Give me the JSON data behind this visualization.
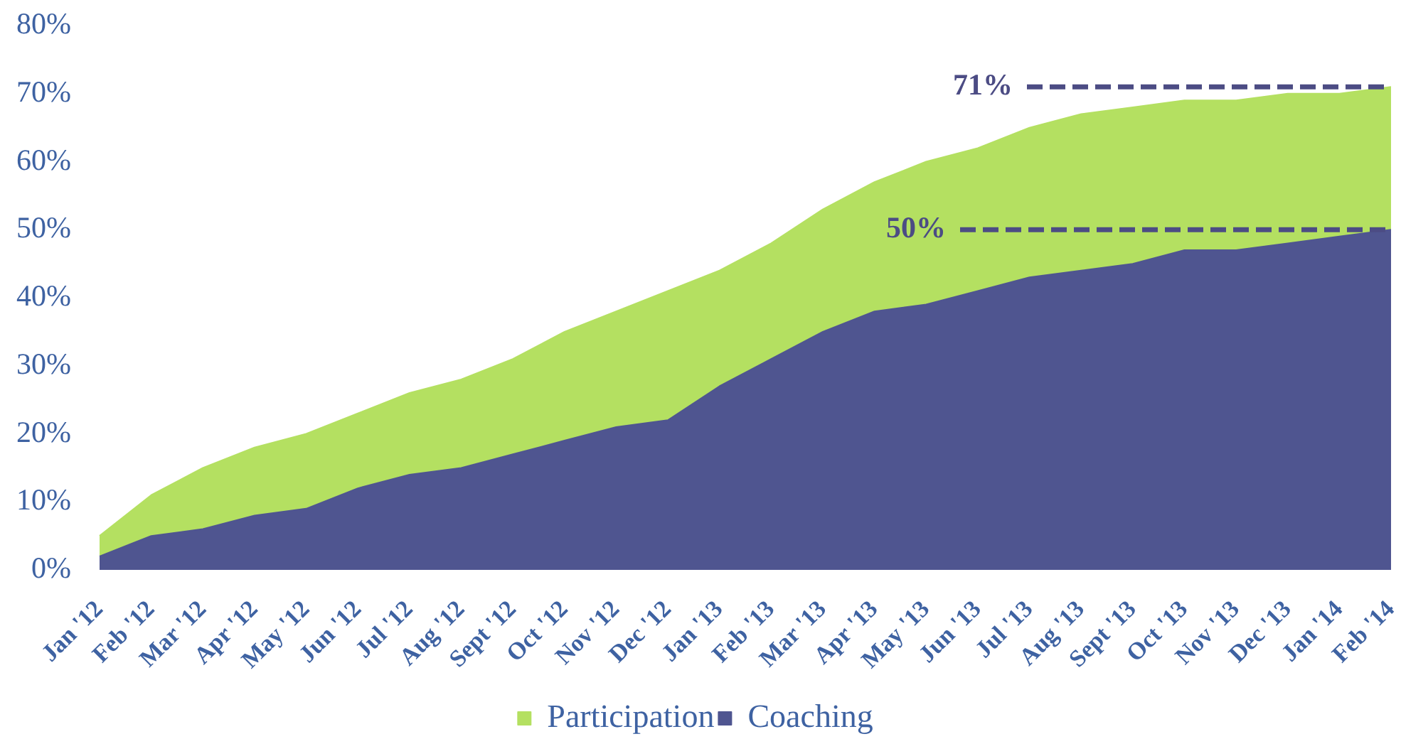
{
  "chart_data": {
    "type": "area",
    "categories": [
      "Jan '12",
      "Feb '12",
      "Mar '12",
      "Apr '12",
      "May '12",
      "Jun '12",
      "Jul '12",
      "Aug '12",
      "Sept '12",
      "Oct '12",
      "Nov '12",
      "Dec '12",
      "Jan '13",
      "Feb '13",
      "Mar '13",
      "Apr '13",
      "May '13",
      "Jun '13",
      "Jul '13",
      "Aug '13",
      "Sept '13",
      "Oct '13",
      "Nov '13",
      "Dec '13",
      "Jan '14",
      "Feb '14"
    ],
    "series": [
      {
        "name": "Participation",
        "color": "#b4e061",
        "values": [
          5,
          11,
          15,
          18,
          20,
          23,
          26,
          28,
          31,
          35,
          38,
          41,
          44,
          48,
          53,
          57,
          60,
          62,
          65,
          67,
          68,
          69,
          69,
          70,
          70,
          71
        ]
      },
      {
        "name": "Coaching",
        "color": "#4f5590",
        "values": [
          2,
          5,
          6,
          8,
          9,
          12,
          14,
          15,
          17,
          19,
          21,
          22,
          27,
          31,
          35,
          38,
          39,
          41,
          43,
          44,
          45,
          47,
          47,
          48,
          49,
          50
        ]
      }
    ],
    "ylim": [
      0,
      80
    ],
    "yticks": [
      {
        "value": 0,
        "label": "0%"
      },
      {
        "value": 10,
        "label": "10%"
      },
      {
        "value": 20,
        "label": "20%"
      },
      {
        "value": 30,
        "label": "30%"
      },
      {
        "value": 40,
        "label": "40%"
      },
      {
        "value": 50,
        "label": "50%"
      },
      {
        "value": 60,
        "label": "60%"
      },
      {
        "value": 70,
        "label": "70%"
      },
      {
        "value": 80,
        "label": "80%"
      }
    ],
    "annotations": [
      {
        "text": "71%",
        "x": "Feb '14",
        "y": 71
      },
      {
        "text": "50%",
        "x": "Feb '14",
        "y": 50
      }
    ],
    "grid": false,
    "legend": "bottom"
  }
}
